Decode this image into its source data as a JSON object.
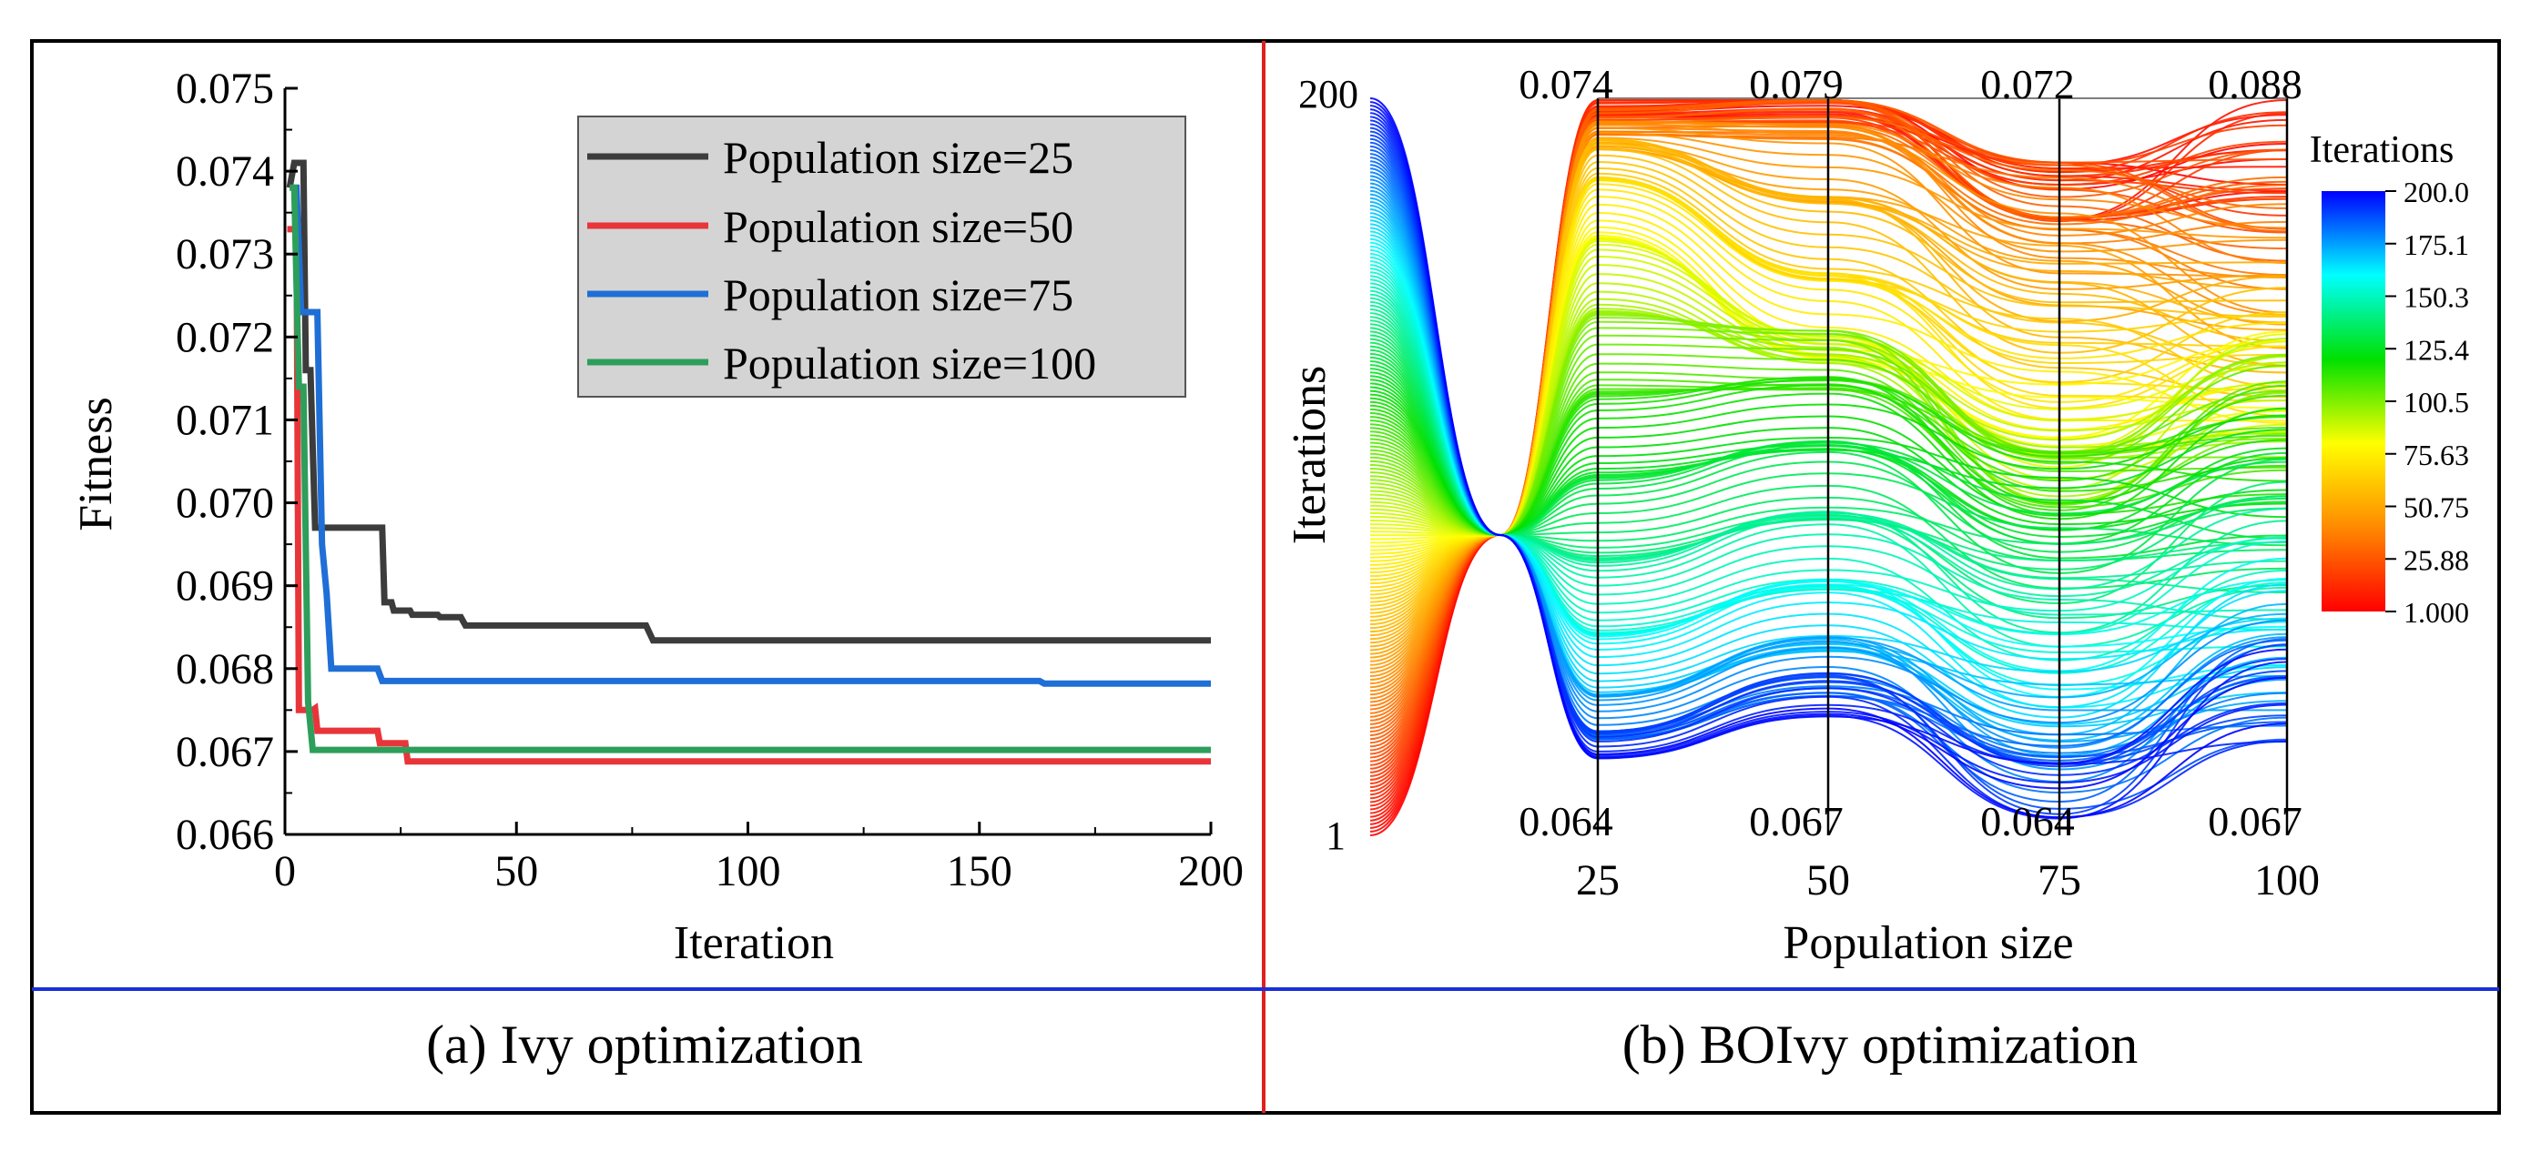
{
  "chart_data": [
    {
      "type": "line",
      "panel_caption": "(a) Ivy optimization",
      "xlabel": "Iteration",
      "ylabel": "Fitness",
      "xlim": [
        0,
        200
      ],
      "ylim": [
        0.066,
        0.075
      ],
      "x_ticks": [
        "0",
        "50",
        "100",
        "150",
        "200"
      ],
      "y_ticks": [
        "0.066",
        "0.067",
        "0.068",
        "0.069",
        "0.070",
        "0.071",
        "0.072",
        "0.073",
        "0.074",
        "0.075"
      ],
      "legend_position": "top-right",
      "series": [
        {
          "name": "Population size=25",
          "color": "#3c3c3c",
          "points": [
            [
              1,
              0.0738
            ],
            [
              2,
              0.0741
            ],
            [
              4,
              0.0741
            ],
            [
              4.5,
              0.0716
            ],
            [
              5.5,
              0.0716
            ],
            [
              6.5,
              0.0697
            ],
            [
              21,
              0.0697
            ],
            [
              21.5,
              0.0688
            ],
            [
              23,
              0.0688
            ],
            [
              23.5,
              0.0687
            ],
            [
              27,
              0.0687
            ],
            [
              27.5,
              0.06865
            ],
            [
              33,
              0.06865
            ],
            [
              33.5,
              0.06862
            ],
            [
              38,
              0.06862
            ],
            [
              39,
              0.06852
            ],
            [
              78,
              0.06852
            ],
            [
              79.5,
              0.06834
            ],
            [
              200,
              0.06834
            ]
          ]
        },
        {
          "name": "Population size=50",
          "color": "#e8353a",
          "points": [
            [
              0.5,
              0.0733
            ],
            [
              2.5,
              0.0733
            ],
            [
              3,
              0.0675
            ],
            [
              6,
              0.0675
            ],
            [
              6.5,
              0.06752
            ],
            [
              7,
              0.06725
            ],
            [
              20,
              0.06725
            ],
            [
              20.5,
              0.0671
            ],
            [
              26,
              0.0671
            ],
            [
              26.5,
              0.06688
            ],
            [
              200,
              0.06688
            ]
          ]
        },
        {
          "name": "Population size=75",
          "color": "#1f6fd6",
          "points": [
            [
              1.5,
              0.0738
            ],
            [
              2.5,
              0.0738
            ],
            [
              3.5,
              0.0723
            ],
            [
              7,
              0.0723
            ],
            [
              8,
              0.0695
            ],
            [
              9,
              0.0689
            ],
            [
              10,
              0.068
            ],
            [
              20,
              0.068
            ],
            [
              21,
              0.06785
            ],
            [
              163,
              0.06785
            ],
            [
              164,
              0.06782
            ],
            [
              200,
              0.06782
            ]
          ]
        },
        {
          "name": "Population size=100",
          "color": "#2e9e5b",
          "points": [
            [
              1,
              0.0738
            ],
            [
              2,
              0.0738
            ],
            [
              3,
              0.0714
            ],
            [
              4,
              0.0714
            ],
            [
              5,
              0.0676
            ],
            [
              6,
              0.06702
            ],
            [
              200,
              0.06702
            ]
          ]
        }
      ]
    },
    {
      "type": "parallel_coordinates",
      "panel_caption": "(b) BOIvy optimization",
      "xlabel": "Population size",
      "ylabel": "Iterations",
      "axis_left_top": "200",
      "axis_left_bottom": "1",
      "x_ticks": [
        "25",
        "50",
        "75",
        "100"
      ],
      "axis_max_labels": [
        "0.074",
        "0.079",
        "0.072",
        "0.088"
      ],
      "axis_min_labels": [
        "0.064",
        "0.067",
        "0.064",
        "0.067"
      ],
      "axis_ranges": [
        [
          0.064,
          0.074
        ],
        [
          0.067,
          0.079
        ],
        [
          0.064,
          0.072
        ],
        [
          0.067,
          0.088
        ]
      ],
      "colorbar": {
        "title": "Iterations",
        "ticks": [
          "200.0",
          "175.1",
          "150.3",
          "125.4",
          "100.5",
          "75.63",
          "50.75",
          "25.88",
          "1.000"
        ],
        "range": [
          1,
          200
        ],
        "colors": [
          "#ff0000",
          "#ff8a00",
          "#ffff00",
          "#00e000",
          "#00ffff",
          "#0000ff"
        ]
      },
      "line_count": 200,
      "line_color_rule": "color encodes iteration 1 (red) to 200 (blue)"
    }
  ],
  "divider_colors": {
    "vertical": "#e02020",
    "horizontal": "#1a2fd6"
  }
}
